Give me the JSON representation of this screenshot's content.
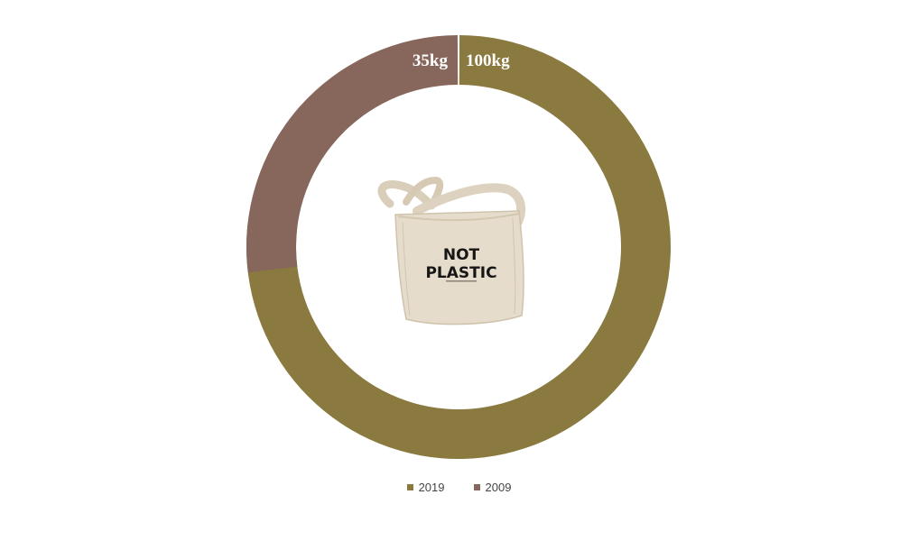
{
  "chart_data": {
    "type": "pie",
    "subtype": "radial-bar",
    "title": "",
    "unit": "kg",
    "ring_max": 130,
    "series": [
      {
        "name": "2019",
        "value": 100,
        "label": "100kg",
        "color": "#8a7a3f"
      },
      {
        "name": "2009",
        "value": 35,
        "label": "35kg",
        "color": "#87675b"
      }
    ],
    "legend_position": "bottom",
    "grid": false
  },
  "center_image": {
    "icon": "tote-bag-icon",
    "bag_text_line1": "NOT",
    "bag_text_line2": "PLASTIC",
    "bag_color": "#e6dccb",
    "strap_color": "#ddd2bf"
  }
}
